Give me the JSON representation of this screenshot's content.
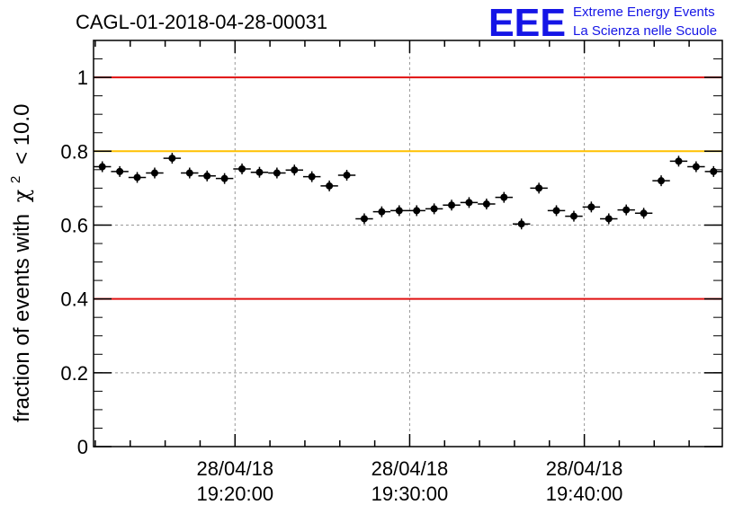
{
  "chart_data": {
    "type": "scatter",
    "title": "CAGL-01-2018-04-28-00031",
    "ylabel_main": "fraction of events with",
    "ylabel_symbol": "χ",
    "ylabel_sup": "2",
    "ylabel_tail": "< 10.0",
    "ylim": [
      0,
      1.1
    ],
    "y_ticks": [
      "0",
      "0.2",
      "0.4",
      "0.6",
      "0.8",
      "1"
    ],
    "y_tick_values": [
      0,
      0.2,
      0.4,
      0.6,
      0.8,
      1.0
    ],
    "x_ticks": [
      {
        "line1": "28/04/18",
        "line2": "19:20:00",
        "minutes": 20
      },
      {
        "line1": "28/04/18",
        "line2": "19:30:00",
        "minutes": 30
      },
      {
        "line1": "28/04/18",
        "line2": "19:40:00",
        "minutes": 40
      }
    ],
    "xlim_minutes": [
      11.9,
      47.9
    ],
    "grid": true,
    "reference_lines": [
      {
        "y": 1.0,
        "color": "#e01010"
      },
      {
        "y": 0.8,
        "color": "#ffc000"
      },
      {
        "y": 0.4,
        "color": "#e01010"
      }
    ],
    "points": [
      {
        "x": 12.4,
        "y": 0.758
      },
      {
        "x": 13.4,
        "y": 0.745
      },
      {
        "x": 14.4,
        "y": 0.729
      },
      {
        "x": 15.4,
        "y": 0.741
      },
      {
        "x": 16.4,
        "y": 0.781
      },
      {
        "x": 17.4,
        "y": 0.741
      },
      {
        "x": 18.4,
        "y": 0.733
      },
      {
        "x": 19.4,
        "y": 0.726
      },
      {
        "x": 20.4,
        "y": 0.752
      },
      {
        "x": 21.4,
        "y": 0.743
      },
      {
        "x": 22.4,
        "y": 0.741
      },
      {
        "x": 23.4,
        "y": 0.749
      },
      {
        "x": 24.4,
        "y": 0.731
      },
      {
        "x": 25.4,
        "y": 0.706
      },
      {
        "x": 26.4,
        "y": 0.735
      },
      {
        "x": 27.4,
        "y": 0.617
      },
      {
        "x": 28.4,
        "y": 0.636
      },
      {
        "x": 29.4,
        "y": 0.639
      },
      {
        "x": 30.4,
        "y": 0.639
      },
      {
        "x": 31.4,
        "y": 0.644
      },
      {
        "x": 32.4,
        "y": 0.654
      },
      {
        "x": 33.4,
        "y": 0.661
      },
      {
        "x": 34.4,
        "y": 0.657
      },
      {
        "x": 35.4,
        "y": 0.675
      },
      {
        "x": 36.4,
        "y": 0.603
      },
      {
        "x": 37.4,
        "y": 0.7
      },
      {
        "x": 38.4,
        "y": 0.639
      },
      {
        "x": 39.4,
        "y": 0.624
      },
      {
        "x": 40.4,
        "y": 0.649
      },
      {
        "x": 41.4,
        "y": 0.617
      },
      {
        "x": 42.4,
        "y": 0.641
      },
      {
        "x": 43.4,
        "y": 0.632
      },
      {
        "x": 44.4,
        "y": 0.72
      },
      {
        "x": 45.4,
        "y": 0.773
      },
      {
        "x": 46.4,
        "y": 0.758
      },
      {
        "x": 47.4,
        "y": 0.745
      }
    ],
    "point_color": "#000000"
  },
  "logo": {
    "mark": "EEE",
    "line1": "Extreme Energy Events",
    "line2": "La Scienza nelle Scuole",
    "color": "#1515e6"
  }
}
